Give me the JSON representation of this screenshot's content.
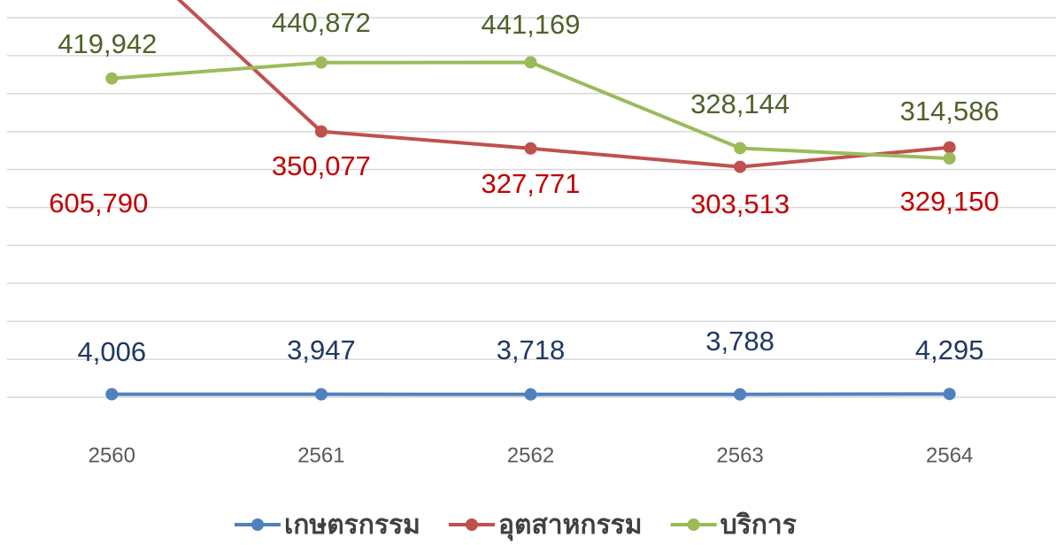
{
  "chart_data": {
    "type": "line",
    "categories": [
      "2560",
      "2561",
      "2562",
      "2563",
      "2564"
    ],
    "series": [
      {
        "name": "เกษตรกรรม",
        "color": "#4f81bd",
        "label_color": "#1f3864",
        "values": [
          4006,
          3947,
          3718,
          3788,
          4295
        ],
        "value_labels": [
          "4,006",
          "3,947",
          "3,718",
          "3,788",
          "4,295"
        ]
      },
      {
        "name": "อุตสาหกรรม",
        "color": "#c0504d",
        "label_color": "#c00000",
        "values": [
          605790,
          350077,
          327771,
          303513,
          329150
        ],
        "value_labels": [
          "605,790",
          "350,077",
          "327,771",
          "303,513",
          "329,150"
        ]
      },
      {
        "name": "บริการ",
        "color": "#9bbb59",
        "label_color": "#4f6228",
        "values": [
          419942,
          440872,
          441169,
          328144,
          314586
        ],
        "value_labels": [
          "419,942",
          "440,872",
          "441,169",
          "328,144",
          "314,586"
        ]
      }
    ],
    "ylim": [
      0,
      500000
    ],
    "yticks": [
      0,
      50000,
      100000,
      150000,
      200000,
      250000,
      300000,
      350000,
      400000,
      450000,
      500000
    ],
    "grid": true,
    "legend": "bottom"
  }
}
